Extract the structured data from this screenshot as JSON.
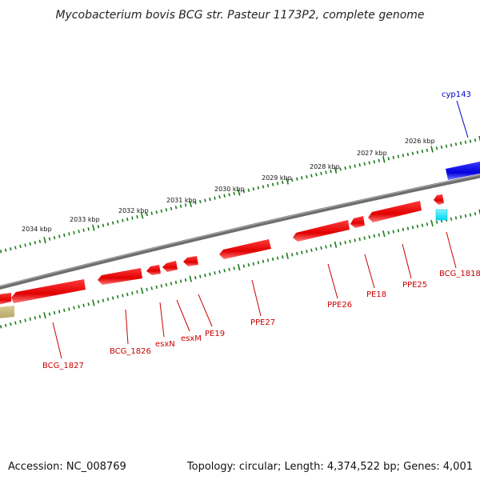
{
  "title": "Mycobacterium bovis BCG str. Pasteur 1173P2, complete genome",
  "footer": {
    "accession": "Accession: NC_008769",
    "summary": "Topology: circular; Length: 4,374,522 bp; Genes: 4,001"
  },
  "scale": {
    "labels": [
      "2034 kbp",
      "2033 kbp",
      "2032 kbp",
      "2031 kbp",
      "2030 kbp",
      "2029 kbp",
      "2028 kbp",
      "2027 kbp",
      "2026 kbp"
    ]
  },
  "genes": [
    {
      "label": "cyp143",
      "color": "#0000cc"
    },
    {
      "label": "BCG_1818",
      "color": "#cc0000"
    },
    {
      "label": "PPE25",
      "color": "#cc0000"
    },
    {
      "label": "PE18",
      "color": "#cc0000"
    },
    {
      "label": "PPE26",
      "color": "#cc0000"
    },
    {
      "label": "PPE27",
      "color": "#cc0000"
    },
    {
      "label": "PE19",
      "color": "#cc0000"
    },
    {
      "label": "esxM",
      "color": "#cc0000"
    },
    {
      "label": "esxN",
      "color": "#cc0000"
    },
    {
      "label": "BCG_1826",
      "color": "#cc0000"
    },
    {
      "label": "BCG_1827",
      "color": "#cc0000"
    }
  ],
  "colors": {
    "backbone": "#808080",
    "tick": "#1a7a1a",
    "reverse_gene": "#ff0000",
    "forward_gene": "#0000ff",
    "rna": "#00e5ff",
    "other": "#c8b87a"
  }
}
